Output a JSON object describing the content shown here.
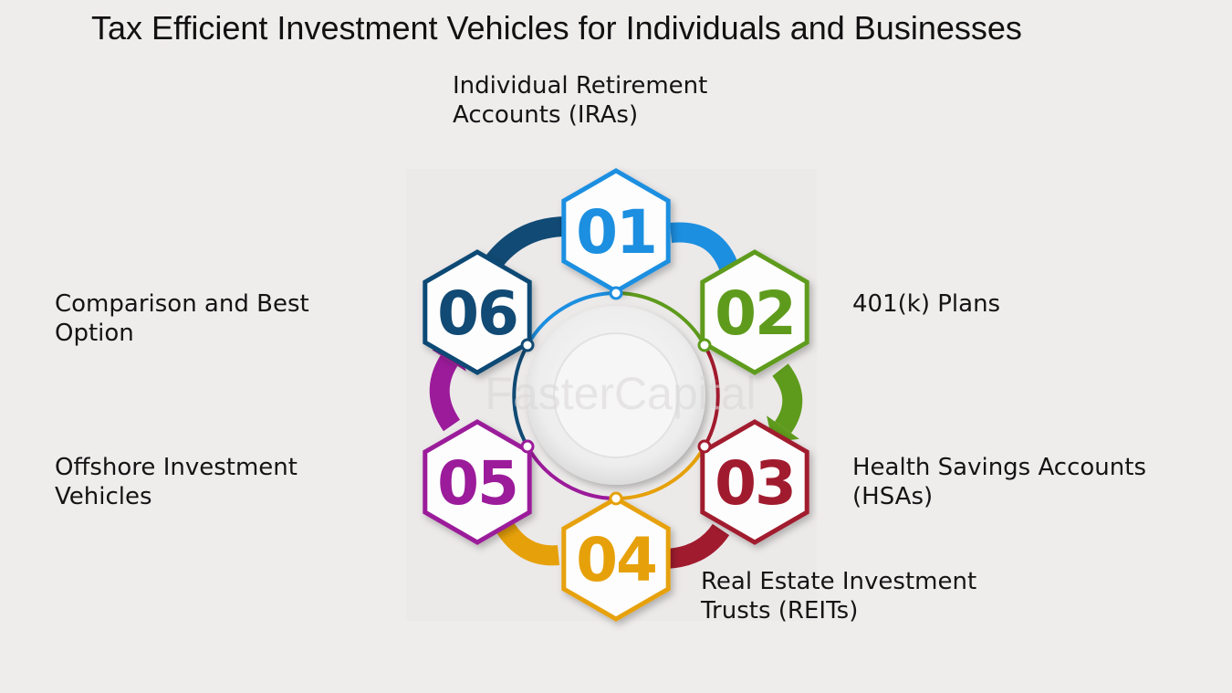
{
  "title": "Tax Efficient Investment Vehicles for Individuals and Businesses",
  "watermark": "FasterCapital",
  "steps": [
    {
      "number": "01",
      "label_lines": [
        "Individual Retirement",
        "Accounts (IRAs)"
      ],
      "color": "#1c8fe0"
    },
    {
      "number": "02",
      "label_lines": [
        "401(k) Plans"
      ],
      "color": "#5e9b1c"
    },
    {
      "number": "03",
      "label_lines": [
        "Health Savings Accounts",
        "(HSAs)"
      ],
      "color": "#a11b2e"
    },
    {
      "number": "04",
      "label_lines": [
        "Real Estate Investment",
        "Trusts (REITs)"
      ],
      "color": "#e6a10a"
    },
    {
      "number": "05",
      "label_lines": [
        "Offshore Investment",
        "Vehicles"
      ],
      "color": "#9b1b9a"
    },
    {
      "number": "06",
      "label_lines": [
        "Comparison and Best",
        "Option"
      ],
      "color": "#114a74"
    }
  ]
}
